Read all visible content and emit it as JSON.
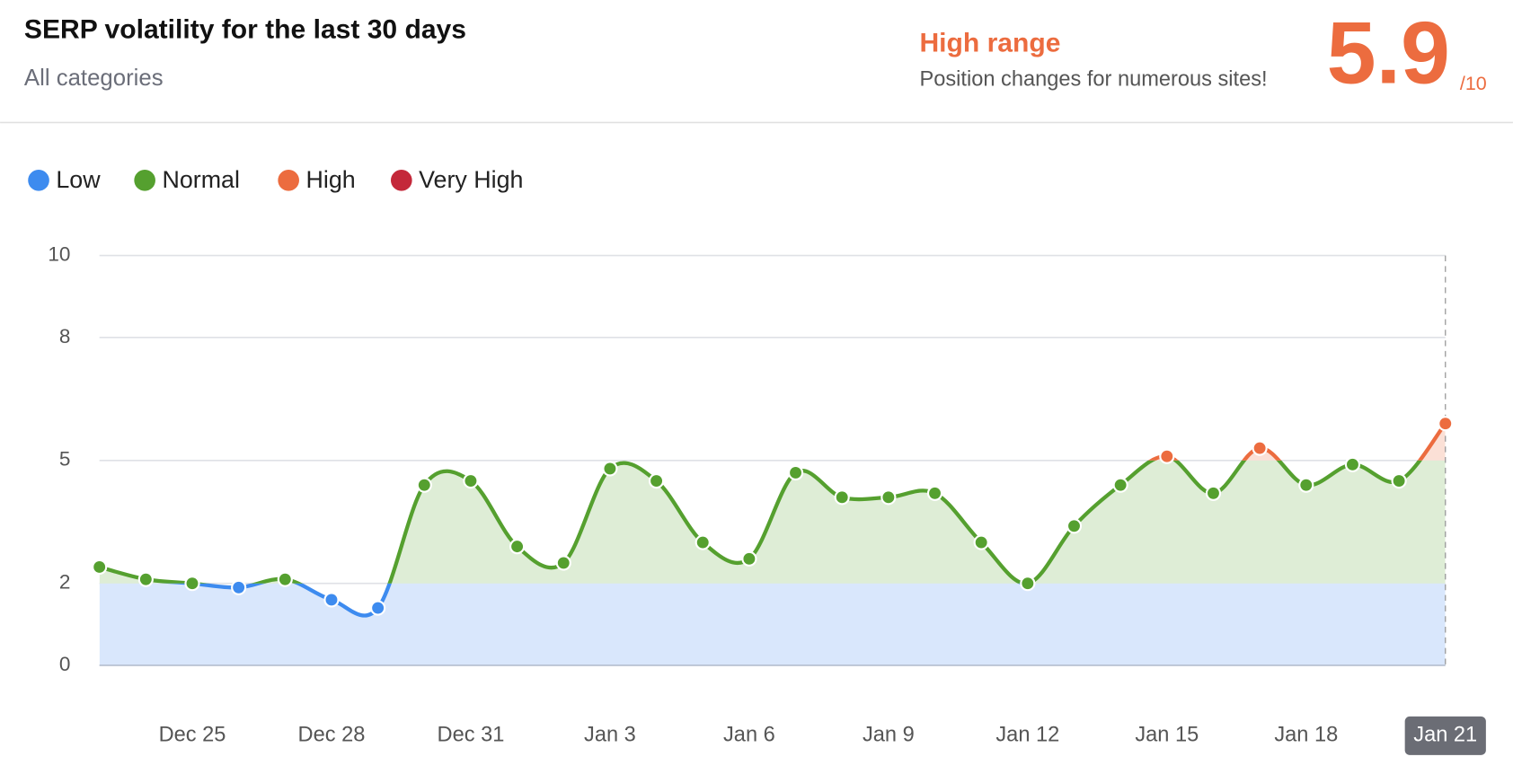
{
  "header": {
    "title": "SERP volatility for the last 30 days",
    "subtitle": "All categories",
    "status": "High range",
    "status_text": "Position changes for numerous sites!",
    "score": 5.9,
    "score_scale": "/10"
  },
  "chart_data": {
    "type": "line",
    "categories": [
      null,
      null,
      "Dec 25",
      null,
      null,
      "Dec 28",
      null,
      null,
      "Dec 31",
      null,
      null,
      "Jan 3",
      null,
      null,
      "Jan 6",
      null,
      null,
      "Jan 9",
      null,
      null,
      "Jan 12",
      null,
      null,
      "Jan 15",
      null,
      null,
      "Jan 18",
      null,
      null,
      "Jan 21"
    ],
    "values": [
      2.4,
      2.1,
      2.0,
      1.9,
      2.1,
      1.6,
      1.4,
      4.4,
      4.5,
      2.9,
      2.5,
      4.8,
      4.5,
      3.0,
      2.6,
      4.7,
      4.1,
      4.1,
      4.2,
      3.0,
      2.0,
      3.4,
      4.4,
      5.1,
      4.2,
      5.3,
      4.4,
      4.9,
      4.5,
      5.9
    ],
    "bands": [
      {
        "name": "Low",
        "from": 0,
        "to": 2,
        "color": "#3d8bef",
        "fill": "#d9e7fc"
      },
      {
        "name": "Normal",
        "from": 2,
        "to": 5,
        "color": "#55a02f",
        "fill": "#deedd6"
      },
      {
        "name": "High",
        "from": 5,
        "to": 8,
        "color": "#ec6c3f",
        "fill": "#fbe0d6"
      },
      {
        "name": "Very High",
        "from": 8,
        "to": 10,
        "color": "#c4283a",
        "fill": "#f7d6da"
      }
    ],
    "ylim": [
      0,
      10
    ],
    "yticks": [
      0,
      2,
      5,
      8,
      10
    ],
    "grid": true
  }
}
